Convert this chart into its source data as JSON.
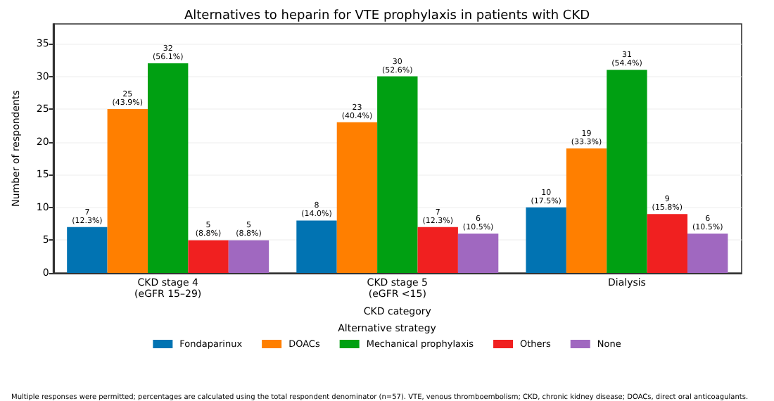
{
  "chart_data": {
    "type": "bar",
    "title": "Alternatives to heparin for VTE prophylaxis in patients with CKD",
    "xlabel": "CKD category",
    "ylabel": "Number of respondents",
    "legend_title": "Alternative strategy",
    "categories": [
      "CKD stage 4\n(eGFR 15–29)",
      "CKD stage 5\n(eGFR <15)",
      "Dialysis"
    ],
    "series": [
      {
        "name": "Fondaparinux",
        "color": "#0173b2",
        "values": [
          7,
          8,
          10
        ],
        "value_labels": [
          "7\n(12.3%)",
          "8\n(14.0%)",
          "10\n(17.5%)"
        ]
      },
      {
        "name": "DOACs",
        "color": "#ff7f00",
        "values": [
          25,
          23,
          19
        ],
        "value_labels": [
          "25\n(43.9%)",
          "23\n(40.4%)",
          "19\n(33.3%)"
        ]
      },
      {
        "name": "Mechanical prophylaxis",
        "color": "#00a012",
        "values": [
          32,
          30,
          31
        ],
        "value_labels": [
          "32\n(56.1%)",
          "30\n(52.6%)",
          "31\n(54.4%)"
        ]
      },
      {
        "name": "Others",
        "color": "#f02020",
        "values": [
          5,
          7,
          9
        ],
        "value_labels": [
          "5\n(8.8%)",
          "7\n(12.3%)",
          "9\n(15.8%)"
        ]
      },
      {
        "name": "None",
        "color": "#a068c0",
        "values": [
          5,
          6,
          6
        ],
        "value_labels": [
          "5\n(8.8%)",
          "6\n(10.5%)",
          "6\n(10.5%)"
        ]
      }
    ],
    "ylim": [
      0,
      38
    ],
    "yticks": [
      0,
      5,
      10,
      15,
      20,
      25,
      30,
      35
    ],
    "grid": "y",
    "legend": "bottom",
    "annotations": [
      "Multiple responses were permitted; percentages are calculated using the total respondent denominator (n=57). VTE, venous thromboembolism; CKD, chronic kidney disease; DOACs, direct oral anticoagulants."
    ]
  }
}
